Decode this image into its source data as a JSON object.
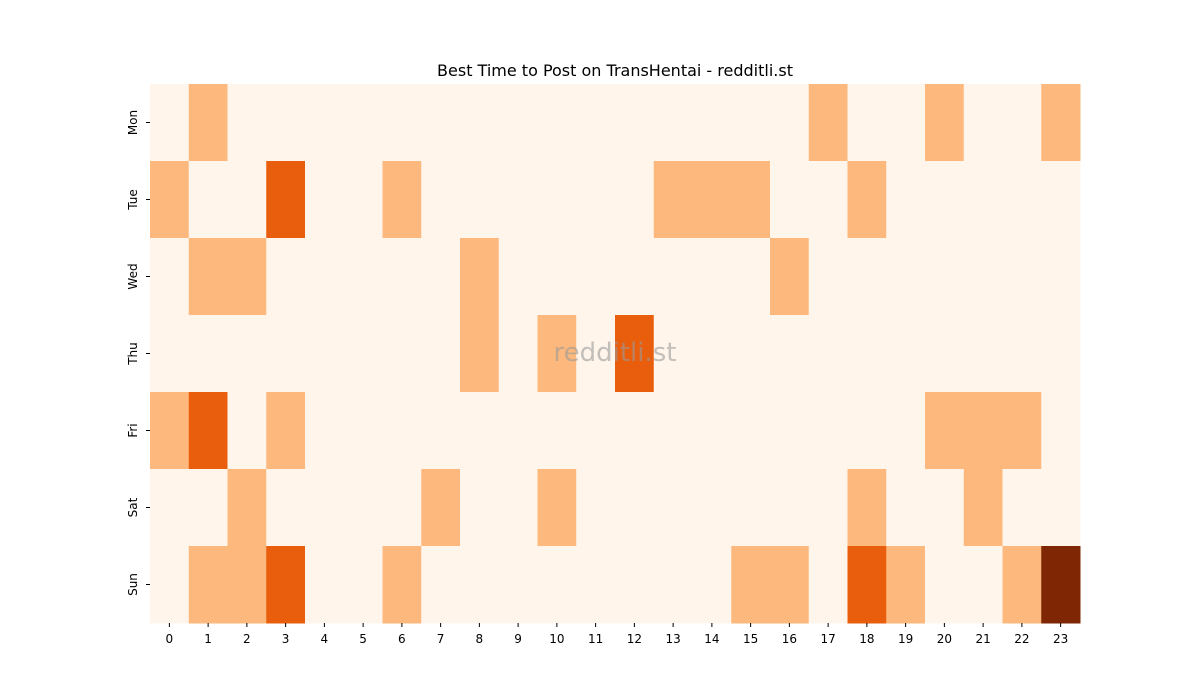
{
  "chart_data": {
    "type": "heatmap",
    "title": "Best Time to Post on TransHentai - redditli.st",
    "watermark": "redditli.st",
    "x": [
      0,
      1,
      2,
      3,
      4,
      5,
      6,
      7,
      8,
      9,
      10,
      11,
      12,
      13,
      14,
      15,
      16,
      17,
      18,
      19,
      20,
      21,
      22,
      23
    ],
    "y": [
      "Mon",
      "Tue",
      "Wed",
      "Thu",
      "Fri",
      "Sat",
      "Sun"
    ],
    "values": [
      [
        0,
        1,
        0,
        0,
        0,
        0,
        0,
        0,
        0,
        0,
        0,
        0,
        0,
        0,
        0,
        0,
        0,
        1,
        0,
        0,
        1,
        0,
        0,
        1
      ],
      [
        1,
        0,
        0,
        2,
        0,
        0,
        1,
        0,
        0,
        0,
        0,
        0,
        0,
        1,
        1,
        1,
        0,
        0,
        1,
        0,
        0,
        0,
        0,
        0
      ],
      [
        0,
        1,
        1,
        0,
        0,
        0,
        0,
        0,
        1,
        0,
        0,
        0,
        0,
        0,
        0,
        0,
        1,
        0,
        0,
        0,
        0,
        0,
        0,
        0
      ],
      [
        0,
        0,
        0,
        0,
        0,
        0,
        0,
        0,
        1,
        0,
        1,
        0,
        2,
        0,
        0,
        0,
        0,
        0,
        0,
        0,
        0,
        0,
        0,
        0
      ],
      [
        1,
        2,
        0,
        1,
        0,
        0,
        0,
        0,
        0,
        0,
        0,
        0,
        0,
        0,
        0,
        0,
        0,
        0,
        0,
        0,
        1,
        1,
        1,
        0
      ],
      [
        0,
        0,
        1,
        0,
        0,
        0,
        0,
        1,
        0,
        0,
        1,
        0,
        0,
        0,
        0,
        0,
        0,
        0,
        1,
        0,
        0,
        1,
        0,
        0
      ],
      [
        0,
        1,
        1,
        2,
        0,
        0,
        1,
        0,
        0,
        0,
        0,
        0,
        0,
        0,
        0,
        1,
        1,
        0,
        2,
        1,
        0,
        0,
        1,
        3
      ]
    ],
    "colors": [
      "#fff5eb",
      "#fdb97d",
      "#e95e0d",
      "#7f2704"
    ],
    "xlabel": "",
    "ylabel": ""
  }
}
